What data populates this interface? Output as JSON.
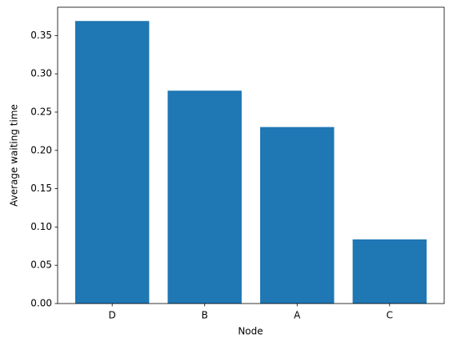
{
  "chart_data": {
    "type": "bar",
    "x_label": "Node",
    "y_label": "Average waiting time",
    "categories": [
      "D",
      "B",
      "A",
      "C"
    ],
    "values": [
      0.369,
      0.278,
      0.2305,
      0.0838
    ],
    "color": "#1f77b4",
    "ylim": [
      0,
      0.387
    ],
    "yticks": [
      {
        "value": 0,
        "label": "0.00"
      },
      {
        "value": 0.05,
        "label": "0.05"
      },
      {
        "value": 0.1,
        "label": "0.10"
      },
      {
        "value": 0.15,
        "label": "0.15"
      },
      {
        "value": 0.2,
        "label": "0.20"
      },
      {
        "value": 0.25,
        "label": "0.25"
      },
      {
        "value": 0.3,
        "label": "0.30"
      },
      {
        "value": 0.35,
        "label": "0.35"
      }
    ]
  }
}
